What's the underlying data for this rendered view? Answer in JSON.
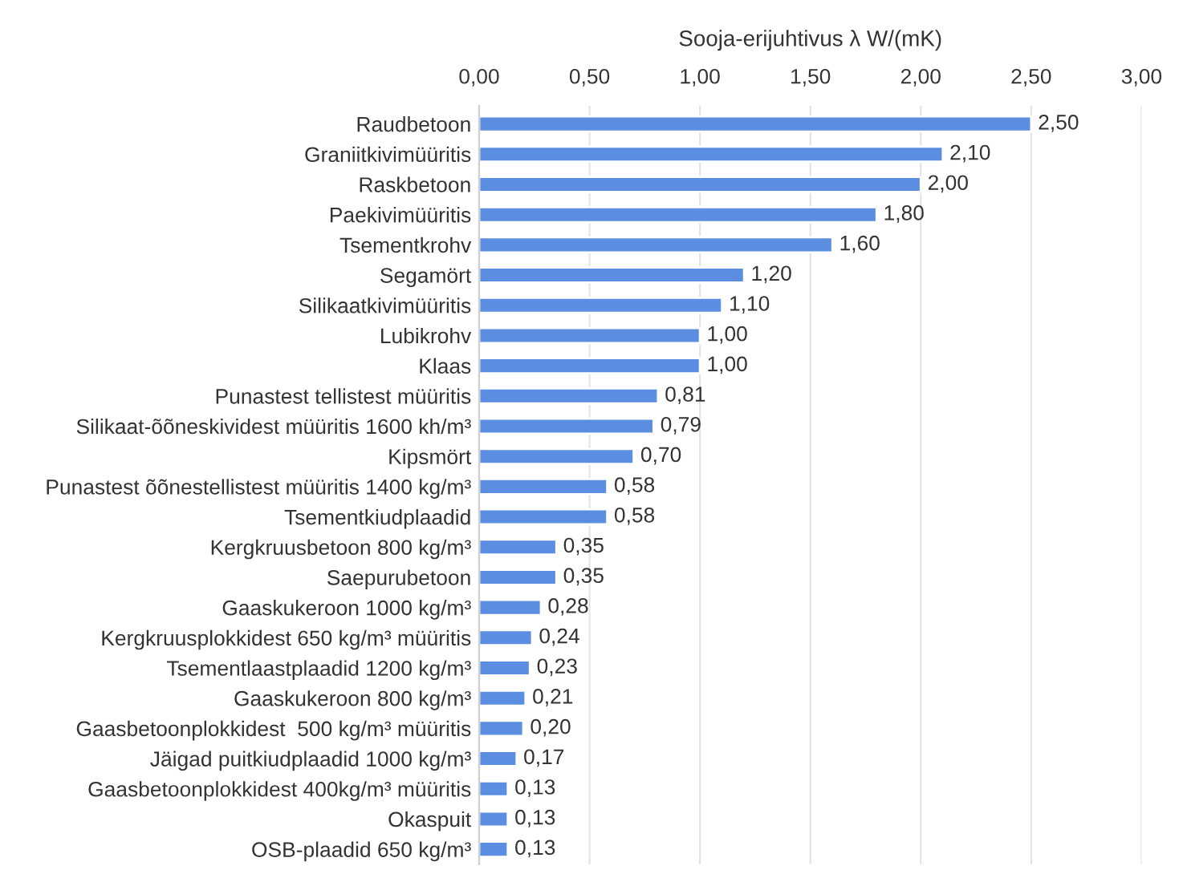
{
  "chart_data": {
    "type": "bar",
    "orientation": "horizontal",
    "xlabel": "Sooja-erijuhtivus λ W/(mK)",
    "categories": [
      "Raudbetoon",
      "Graniitkivimüüritis",
      "Raskbetoon",
      "Paekivimüüritis",
      "Tsementkrohv",
      "Segamört",
      "Silikaatkivimüüritis",
      "Lubikrohv",
      "Klaas",
      "Punastest tellistest müüritis",
      "Silikaat-õõneskividest müüritis 1600 kh/m³",
      "Kipsmört",
      "Punastest õõnestellistest müüritis 1400 kg/m³",
      "Tsementkiudplaadid",
      "Kergkruusbetoon 800 kg/m³",
      "Saepurubetoon",
      "Gaaskukeroon 1000 kg/m³",
      "Kergkruusplokkidest 650 kg/m³ müüritis",
      "Tsementlaastplaadid 1200 kg/m³",
      "Gaaskukeroon 800 kg/m³",
      "Gaasbetoonplokkidest  500 kg/m³ müüritis",
      "Jäigad puitkiudplaadid 1000 kg/m³",
      "Gaasbetoonplokkidest 400kg/m³ müüritis",
      "Okaspuit",
      "OSB-plaadid 650 kg/m³"
    ],
    "values": [
      2.5,
      2.1,
      2.0,
      1.8,
      1.6,
      1.2,
      1.1,
      1.0,
      1.0,
      0.81,
      0.79,
      0.7,
      0.58,
      0.58,
      0.35,
      0.35,
      0.28,
      0.24,
      0.23,
      0.21,
      0.2,
      0.17,
      0.13,
      0.13,
      0.13
    ],
    "value_labels": [
      "2,50",
      "2,10",
      "2,00",
      "1,80",
      "1,60",
      "1,20",
      "1,10",
      "1,00",
      "1,00",
      "0,81",
      "0,79",
      "0,70",
      "0,58",
      "0,58",
      "0,35",
      "0,35",
      "0,28",
      "0,24",
      "0,23",
      "0,21",
      "0,20",
      "0,17",
      "0,13",
      "0,13",
      "0,13"
    ],
    "color": "#5b8ee0",
    "xlim": [
      0,
      3
    ],
    "xticks": [
      {
        "value": 0,
        "label": "0,00"
      },
      {
        "value": 0.5,
        "label": "0,50"
      },
      {
        "value": 1,
        "label": "1,00"
      },
      {
        "value": 1.5,
        "label": "1,50"
      },
      {
        "value": 2,
        "label": "2,00"
      },
      {
        "value": 2.5,
        "label": "2,50"
      },
      {
        "value": 3,
        "label": "3,00"
      }
    ],
    "grid": "x",
    "legend": false
  }
}
